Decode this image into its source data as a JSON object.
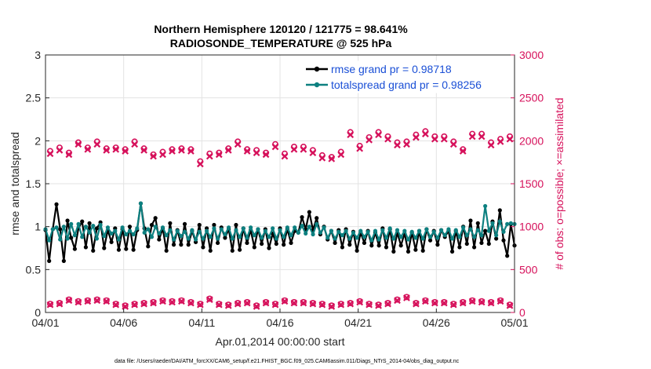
{
  "chart_data": {
    "type": "line",
    "title": "Northern Hemisphere 120120 / 121775 = 98.641%",
    "subtitle": "RADIOSONDE_TEMPERATURE @ 525 hPa",
    "xlabel": "Apr.01,2014 00:00:00 start",
    "ylabel": "rmse and totalspread",
    "y2label": "# of obs: o=possible; ×=assimilated",
    "footer": "data file: /Users/raeder/DAI/ATM_forcXX/CAM6_setup/f.e21.FHIST_BGC.f09_025.CAM6assim.011/Diags_NTrS_2014-04/obs_diag_output.nc",
    "xlim": [
      0,
      30
    ],
    "ylim": [
      0,
      3
    ],
    "y2lim": [
      0,
      3000
    ],
    "x_ticks": [
      0,
      5,
      10,
      15,
      20,
      25,
      30
    ],
    "x_tick_labels": [
      "04/01",
      "04/06",
      "04/11",
      "04/16",
      "04/21",
      "04/26",
      "05/01"
    ],
    "y_ticks": [
      0,
      0.5,
      1,
      1.5,
      2,
      2.5,
      3
    ],
    "y_tick_labels": [
      "0",
      "0.5",
      "1",
      "1.5",
      "2",
      "2.5",
      "3"
    ],
    "y2_ticks": [
      0,
      500,
      1000,
      1500,
      2000,
      2500,
      3000
    ],
    "y2_tick_labels": [
      "0",
      "500",
      "1000",
      "1500",
      "2000",
      "2500",
      "3000"
    ],
    "grid": true,
    "legend_position": "top-right",
    "colors": {
      "rmse": "#000000",
      "totalspread": "#0d8080",
      "obs": "#d6115b",
      "legend_text": "#1a4fd6",
      "grid": "#e3e3e3"
    },
    "series": [
      {
        "name": "rmse grand pr = 0.98718",
        "axis": "left",
        "values": [
          0.96,
          0.6,
          0.97,
          1.26,
          0.97,
          0.6,
          1.07,
          0.87,
          0.74,
          0.98,
          1.06,
          0.76,
          1.04,
          0.72,
          0.98,
          1.05,
          0.75,
          0.96,
          0.82,
          0.98,
          0.73,
          0.97,
          0.74,
          1.0,
          0.73,
          0.96,
          1.27,
          0.98,
          0.77,
          1.02,
          1.1,
          0.85,
          0.98,
          0.72,
          1.04,
          0.79,
          0.96,
          0.79,
          1.03,
          0.79,
          0.95,
          0.82,
          1.02,
          0.76,
          0.98,
          0.72,
          1.02,
          0.81,
          0.99,
          0.87,
          0.97,
          0.72,
          1.02,
          0.73,
          0.98,
          0.81,
          0.96,
          0.76,
          0.97,
          0.8,
          0.97,
          0.75,
          0.92,
          0.8,
          0.98,
          0.79,
          0.97,
          0.81,
          0.95,
          0.93,
          1.11,
          0.97,
          1.17,
          0.96,
          1.1,
          0.91,
          1.0,
          0.85,
          0.95,
          0.81,
          0.96,
          0.76,
          0.97,
          0.79,
          0.94,
          0.72,
          0.93,
          0.81,
          0.95,
          0.78,
          0.93,
          0.78,
          0.98,
          0.76,
          0.97,
          0.71,
          0.93,
          0.78,
          0.92,
          0.71,
          0.93,
          0.73,
          0.95,
          0.72,
          0.97,
          0.84,
          0.95,
          0.79,
          0.96,
          0.88,
          0.95,
          0.71,
          0.95,
          0.76,
          1.0,
          0.8,
          1.07,
          0.76,
          1.04,
          0.81,
          0.95,
          0.8,
          1.06,
          0.86,
          1.19,
          0.84,
          0.66,
          1.03,
          0.78
        ]
      },
      {
        "name": "totalspread grand pr = 0.98256",
        "axis": "left",
        "values": [
          0.97,
          0.84,
          0.97,
          0.99,
          0.85,
          1.0,
          0.86,
          1.03,
          0.9,
          1.03,
          0.88,
          1.0,
          0.93,
          1.01,
          0.86,
          1.02,
          0.89,
          0.99,
          0.92,
          0.95,
          0.85,
          0.99,
          0.91,
          0.95,
          0.91,
          0.98,
          1.27,
          0.93,
          0.97,
          0.88,
          1.0,
          0.92,
          0.99,
          0.9,
          0.96,
          0.85,
          0.95,
          0.89,
          0.94,
          0.86,
          0.96,
          0.85,
          0.94,
          0.86,
          0.95,
          0.88,
          0.98,
          0.86,
          0.97,
          0.91,
          0.99,
          0.86,
          0.96,
          0.88,
          0.98,
          0.87,
          0.99,
          0.9,
          0.97,
          0.87,
          0.95,
          0.88,
          0.98,
          0.86,
          0.96,
          0.88,
          0.99,
          0.9,
          0.99,
          0.93,
          1.01,
          0.92,
          1.0,
          0.91,
          1.03,
          0.93,
          0.99,
          0.87,
          0.95,
          0.86,
          0.94,
          0.9,
          0.95,
          0.86,
          0.93,
          0.87,
          0.95,
          0.88,
          0.94,
          0.84,
          0.95,
          0.85,
          0.96,
          0.87,
          0.98,
          0.86,
          0.96,
          0.88,
          0.95,
          0.85,
          0.94,
          0.87,
          0.95,
          0.86,
          0.97,
          0.88,
          0.94,
          0.87,
          0.96,
          0.9,
          0.97,
          0.86,
          0.96,
          0.88,
          0.99,
          0.9,
          0.97,
          0.88,
          0.96,
          0.9,
          1.24,
          0.95,
          1.04,
          0.9,
          1.06,
          0.94,
          1.03,
          1.04,
          1.03
        ]
      },
      {
        "name": "possible",
        "axis": "right",
        "marker": "o",
        "values": [
          1880,
          1920,
          1860,
          1980,
          1920,
          1990,
          1910,
          1920,
          1900,
          1990,
          1910,
          1840,
          1870,
          1900,
          1910,
          1900,
          1760,
          1850,
          1860,
          1910,
          1990,
          1900,
          1890,
          1860,
          1960,
          1850,
          1930,
          1930,
          1890,
          1830,
          1810,
          1870,
          2100,
          1940,
          2040,
          2100,
          2050,
          1980,
          1990,
          2070,
          2110,
          2050,
          2050,
          1990,
          1900,
          2080,
          2080,
          1980,
          2020,
          2050
        ]
      },
      {
        "name": "assimilated",
        "axis": "right",
        "marker": "x",
        "values": [
          1850,
          1890,
          1840,
          1960,
          1900,
          1960,
          1890,
          1900,
          1880,
          1960,
          1890,
          1820,
          1840,
          1880,
          1890,
          1880,
          1730,
          1820,
          1840,
          1890,
          1960,
          1880,
          1860,
          1840,
          1930,
          1820,
          1900,
          1900,
          1860,
          1800,
          1790,
          1840,
          2070,
          1910,
          2010,
          2070,
          2020,
          1950,
          1960,
          2040,
          2080,
          2020,
          2020,
          1960,
          1880,
          2050,
          2050,
          1950,
          1990,
          2020
        ]
      },
      {
        "name": "possible-low",
        "axis": "right",
        "marker": "o",
        "values": [
          100,
          110,
          150,
          130,
          140,
          150,
          140,
          100,
          80,
          100,
          110,
          120,
          140,
          130,
          140,
          120,
          100,
          160,
          100,
          90,
          110,
          120,
          80,
          120,
          100,
          140,
          120,
          120,
          110,
          100,
          80,
          100,
          110,
          130,
          100,
          90,
          110,
          150,
          180,
          110,
          140,
          120,
          120,
          100,
          120,
          140,
          130,
          120,
          140,
          90
        ]
      },
      {
        "name": "assimilated-low",
        "axis": "right",
        "marker": "x",
        "values": [
          90,
          100,
          140,
          120,
          130,
          140,
          130,
          90,
          70,
          90,
          100,
          110,
          130,
          120,
          130,
          110,
          90,
          150,
          90,
          80,
          100,
          110,
          70,
          110,
          90,
          130,
          110,
          110,
          100,
          90,
          70,
          90,
          100,
          120,
          90,
          80,
          100,
          140,
          170,
          100,
          130,
          110,
          110,
          90,
          110,
          130,
          120,
          110,
          130,
          80
        ]
      }
    ]
  }
}
